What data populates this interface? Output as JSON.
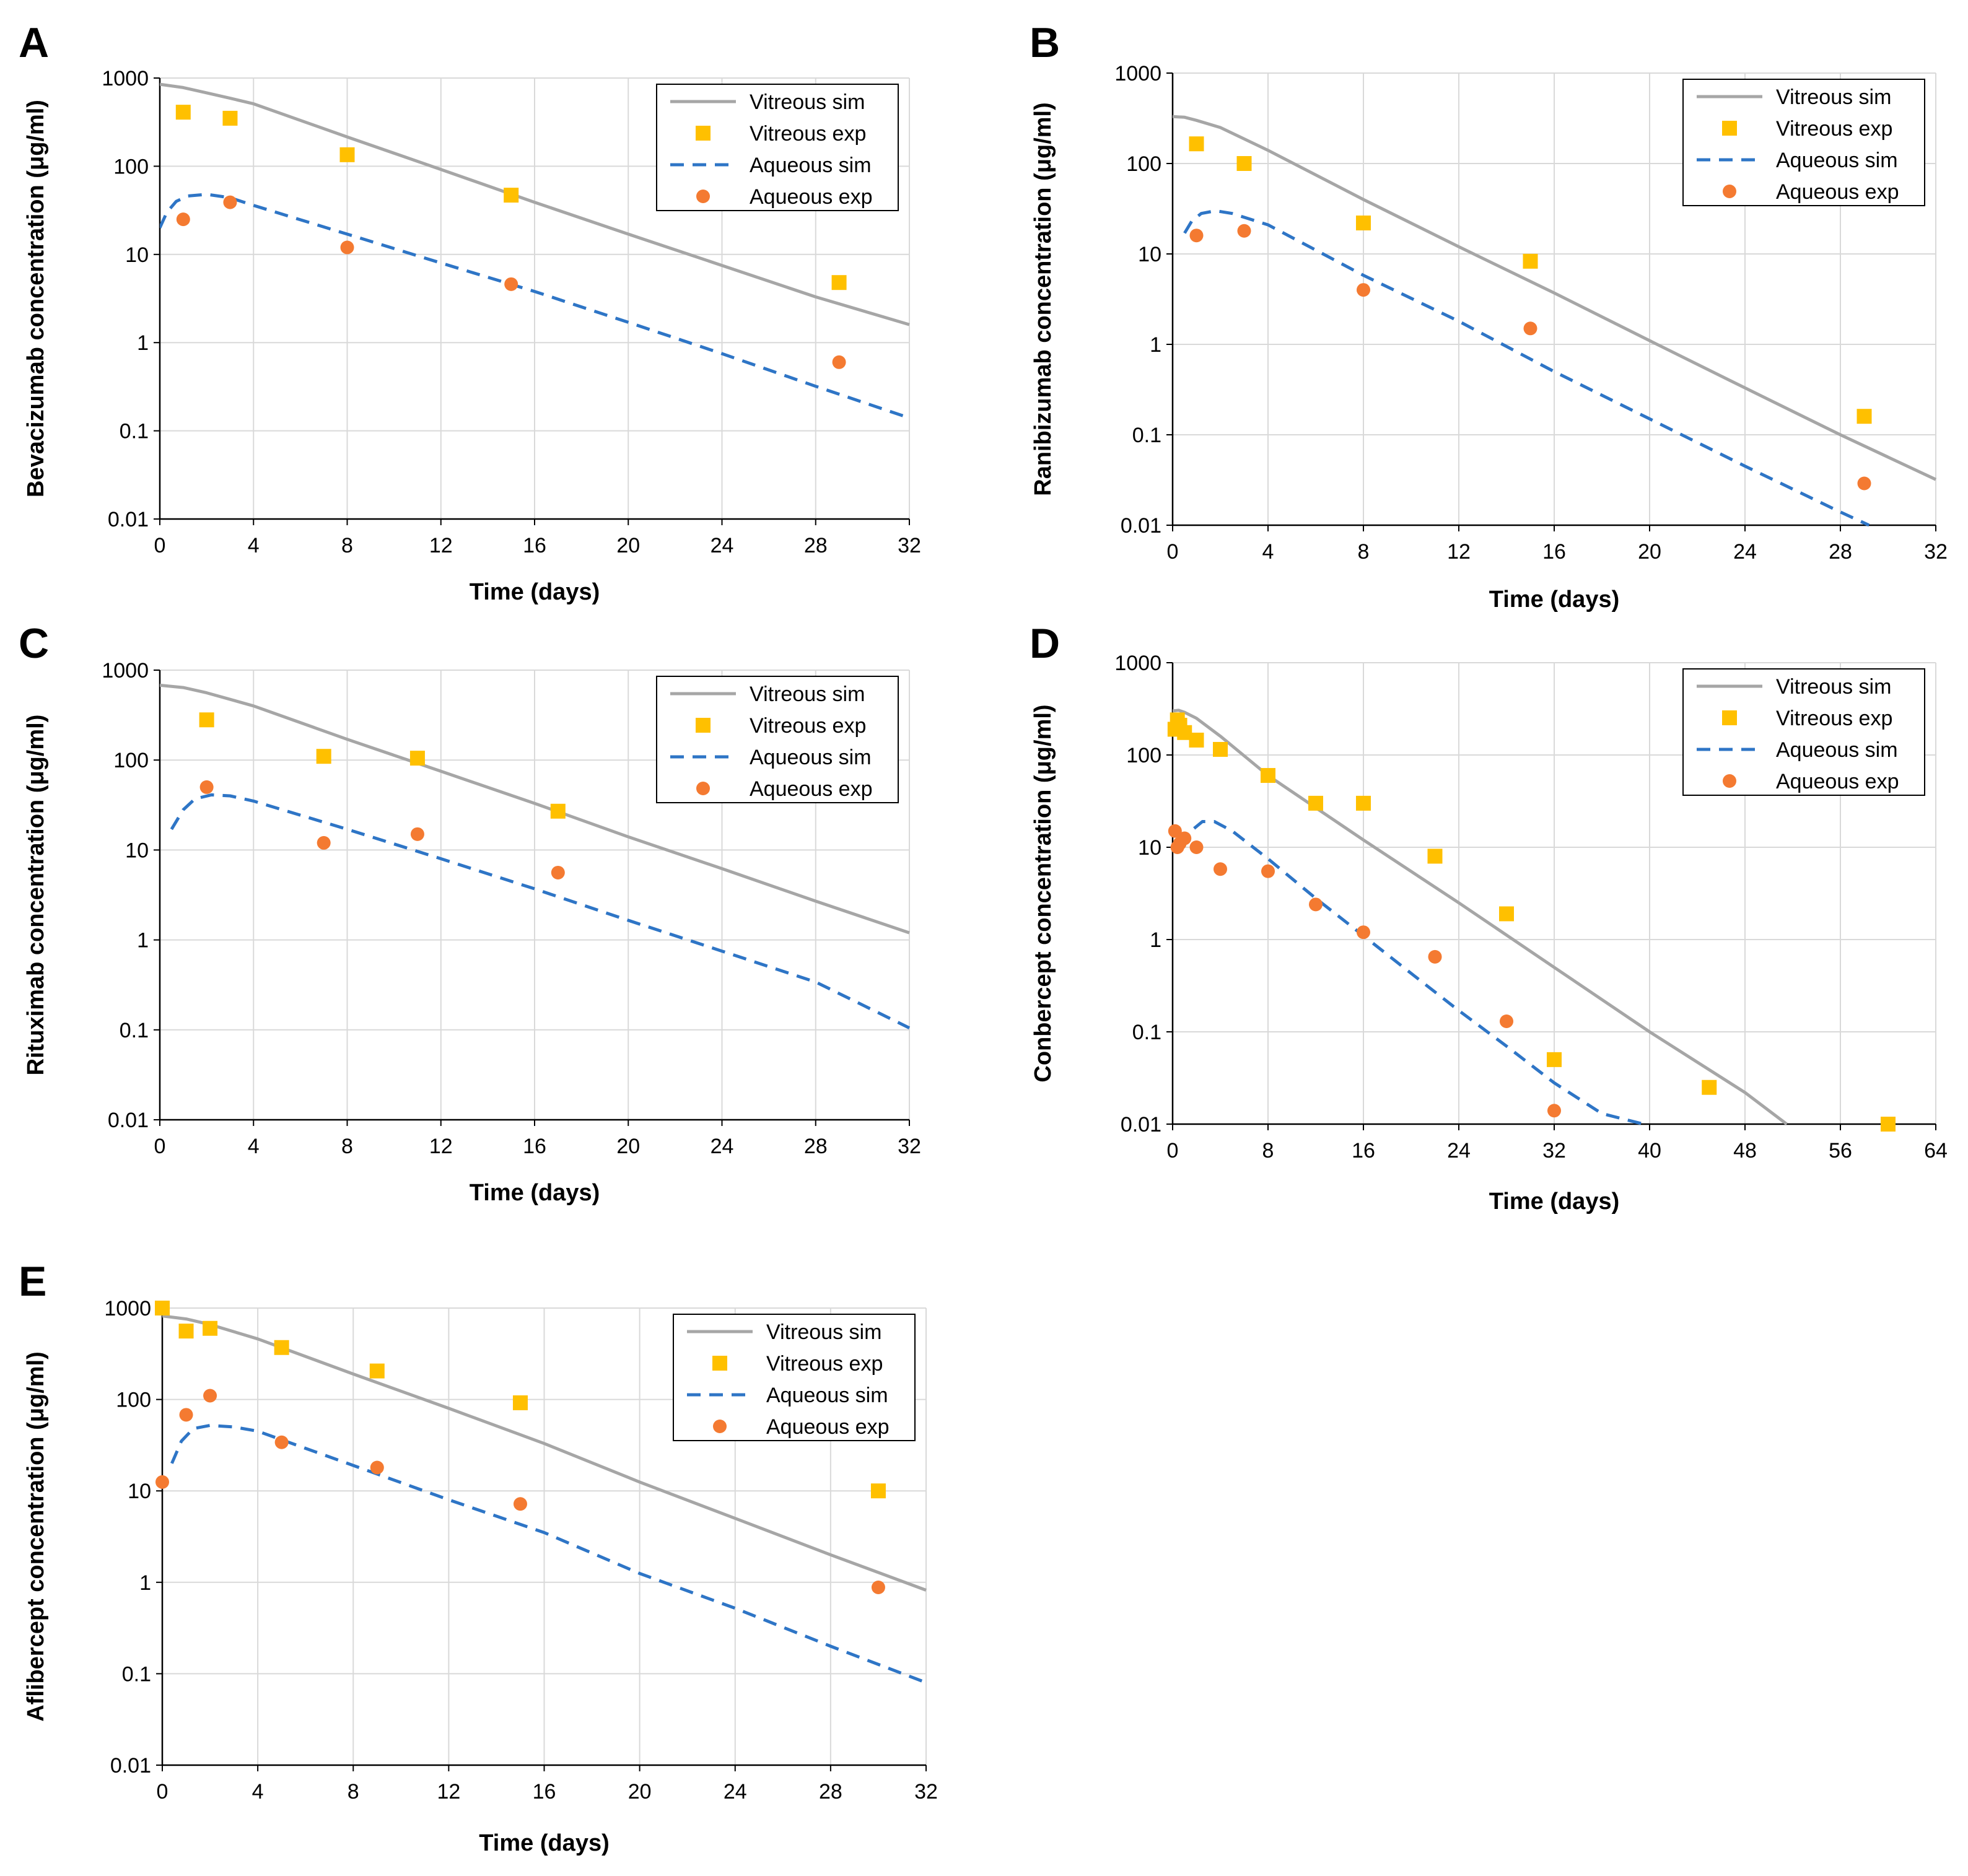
{
  "colors": {
    "vitreous_sim": "#a6a6a6",
    "vitreous_exp": "#ffc000",
    "aqueous_sim": "#2e75c6",
    "aqueous_exp": "#f47a31",
    "grid": "#d9d9d9",
    "axis": "#000000"
  },
  "legend_labels": [
    "Vitreous sim",
    "Vitreous exp",
    "Aqueous sim",
    "Aqueous exp"
  ],
  "chart_data": [
    {
      "panel": "A",
      "type": "line+scatter",
      "ylabel": "Bevacizumab concentration (μg/ml)",
      "xlabel": "Time (days)",
      "xlim": [
        0,
        32
      ],
      "xticks": [
        "0",
        "4",
        "8",
        "12",
        "16",
        "20",
        "24",
        "28",
        "32"
      ],
      "ylim": [
        0.01,
        1000
      ],
      "yscale": "log",
      "yticks": [
        "0.01",
        "0.1",
        "1",
        "10",
        "100",
        "1000"
      ],
      "legend": "top-right",
      "series": [
        {
          "name": "Vitreous sim",
          "kind": "line",
          "x": [
            0,
            1,
            2,
            3,
            4,
            8,
            12,
            16,
            20,
            24,
            28,
            32
          ],
          "y": [
            850,
            780,
            680,
            590,
            510,
            215,
            92,
            39,
            17,
            7.5,
            3.3,
            1.6
          ]
        },
        {
          "name": "Vitreous exp",
          "kind": "square",
          "x": [
            1,
            3,
            8,
            15,
            29
          ],
          "y": [
            410,
            350,
            135,
            47,
            4.8
          ]
        },
        {
          "name": "Aqueous sim",
          "kind": "dashed",
          "x": [
            0,
            0.3,
            0.7,
            1.2,
            2,
            3,
            4,
            8,
            12,
            16,
            20,
            24,
            28,
            32
          ],
          "y": [
            20,
            30,
            40,
            46,
            48,
            44,
            36,
            17,
            8,
            3.8,
            1.7,
            0.75,
            0.32,
            0.14
          ]
        },
        {
          "name": "Aqueous exp",
          "kind": "circle",
          "x": [
            1,
            3,
            8,
            15,
            29
          ],
          "y": [
            25,
            39,
            12,
            4.6,
            0.6
          ]
        }
      ]
    },
    {
      "panel": "B",
      "type": "line+scatter",
      "ylabel": "Ranibizumab concentration (μg/ml)",
      "xlabel": "Time (days)",
      "xlim": [
        0,
        32
      ],
      "xticks": [
        "0",
        "4",
        "8",
        "12",
        "16",
        "20",
        "24",
        "28",
        "32"
      ],
      "ylim": [
        0.01,
        1000
      ],
      "yscale": "log",
      "yticks": [
        "0.01",
        "0.1",
        "1",
        "10",
        "100",
        "1000"
      ],
      "legend": "top-right",
      "series": [
        {
          "name": "Vitreous sim",
          "kind": "line",
          "x": [
            0,
            0.5,
            1,
            2,
            4,
            8,
            12,
            16,
            20,
            24,
            28,
            32
          ],
          "y": [
            330,
            325,
            300,
            250,
            140,
            40,
            12,
            3.7,
            1.1,
            0.33,
            0.1,
            0.032
          ]
        },
        {
          "name": "Vitreous exp",
          "kind": "square",
          "x": [
            1,
            3,
            8,
            15,
            29
          ],
          "y": [
            165,
            100,
            22,
            8.3,
            0.16
          ]
        },
        {
          "name": "Aqueous sim",
          "kind": "dashed",
          "x": [
            0.5,
            0.8,
            1.2,
            1.8,
            2.5,
            4,
            8,
            12,
            16,
            20,
            24,
            28,
            29.2
          ],
          "y": [
            17,
            23,
            28,
            30,
            28,
            21,
            5.8,
            1.8,
            0.5,
            0.15,
            0.045,
            0.014,
            0.01
          ]
        },
        {
          "name": "Aqueous exp",
          "kind": "circle",
          "x": [
            1,
            3,
            8,
            15,
            29
          ],
          "y": [
            16,
            18,
            4,
            1.5,
            0.029
          ]
        }
      ]
    },
    {
      "panel": "C",
      "type": "line+scatter",
      "ylabel": "Rituximab concentration (μg/ml)",
      "xlabel": "Time (days)",
      "xlim": [
        0,
        32
      ],
      "xticks": [
        "0",
        "4",
        "8",
        "12",
        "16",
        "20",
        "24",
        "28",
        "32"
      ],
      "ylim": [
        0.01,
        1000
      ],
      "yscale": "log",
      "yticks": [
        "0.01",
        "0.1",
        "1",
        "10",
        "100",
        "1000"
      ],
      "legend": "top-right",
      "series": [
        {
          "name": "Vitreous sim",
          "kind": "line",
          "x": [
            0,
            1,
            2,
            4,
            8,
            12,
            16,
            20,
            24,
            28,
            32
          ],
          "y": [
            680,
            640,
            560,
            400,
            170,
            75,
            33,
            14,
            6.2,
            2.7,
            1.2
          ]
        },
        {
          "name": "Vitreous exp",
          "kind": "square",
          "x": [
            2,
            7,
            11,
            17
          ],
          "y": [
            280,
            110,
            105,
            27
          ]
        },
        {
          "name": "Aqueous sim",
          "kind": "dashed",
          "x": [
            0.5,
            1,
            1.5,
            2.2,
            3,
            4,
            8,
            12,
            16,
            20,
            24,
            28,
            32
          ],
          "y": [
            17,
            28,
            37,
            41,
            40,
            35,
            17,
            8,
            3.7,
            1.65,
            0.75,
            0.34,
            0.105
          ]
        },
        {
          "name": "Aqueous exp",
          "kind": "circle",
          "x": [
            2,
            7,
            11,
            17
          ],
          "y": [
            50,
            12,
            15,
            5.6
          ]
        }
      ]
    },
    {
      "panel": "D",
      "type": "line+scatter",
      "ylabel": "Conbercept concentration (μg/ml)",
      "xlabel": "Time (days)",
      "xlim": [
        0,
        64
      ],
      "xticks": [
        "0",
        "8",
        "16",
        "24",
        "32",
        "40",
        "48",
        "56",
        "64"
      ],
      "ylim": [
        0.01,
        1000
      ],
      "yscale": "log",
      "yticks": [
        "0.01",
        "0.1",
        "1",
        "10",
        "100",
        "1000"
      ],
      "legend": "top-right",
      "series": [
        {
          "name": "Vitreous sim",
          "kind": "line",
          "x": [
            0,
            0.5,
            1,
            2,
            4,
            8,
            16,
            24,
            32,
            40,
            48,
            51.5
          ],
          "y": [
            300,
            305,
            290,
            250,
            160,
            60,
            12,
            2.5,
            0.5,
            0.1,
            0.022,
            0.01
          ]
        },
        {
          "name": "Vitreous exp",
          "kind": "square",
          "x": [
            0.2,
            0.4,
            0.6,
            1,
            2,
            4,
            8,
            12,
            16,
            22,
            28,
            32,
            45,
            60
          ],
          "y": [
            190,
            240,
            210,
            175,
            145,
            115,
            60,
            30,
            30,
            8,
            1.9,
            0.05,
            0.025,
            0.01
          ]
        },
        {
          "name": "Aqueous sim",
          "kind": "dashed",
          "x": [
            1.8,
            2.5,
            3.5,
            5,
            8,
            12,
            16,
            20,
            24,
            28,
            32,
            36,
            39.5
          ],
          "y": [
            16,
            19,
            19,
            15,
            7.5,
            2.8,
            1.1,
            0.43,
            0.17,
            0.07,
            0.028,
            0.013,
            0.01
          ]
        },
        {
          "name": "Aqueous exp",
          "kind": "circle",
          "x": [
            0.2,
            0.4,
            0.6,
            1,
            2,
            4,
            8,
            12,
            16,
            22,
            28,
            32
          ],
          "y": [
            15,
            10,
            11,
            12.5,
            10,
            5.8,
            5.5,
            2.4,
            1.2,
            0.65,
            0.13,
            0.014
          ]
        }
      ]
    },
    {
      "panel": "E",
      "type": "line+scatter",
      "ylabel": "Aflibercept concentration (μg/ml)",
      "xlabel": "Time (days)",
      "xlim": [
        0,
        32
      ],
      "xticks": [
        "0",
        "4",
        "8",
        "12",
        "16",
        "20",
        "24",
        "28",
        "32"
      ],
      "ylim": [
        0.01,
        1000
      ],
      "yscale": "log",
      "yticks": [
        "0.01",
        "0.1",
        "1",
        "10",
        "100",
        "1000"
      ],
      "legend": "top-right",
      "series": [
        {
          "name": "Vitreous sim",
          "kind": "line",
          "x": [
            0,
            1,
            2,
            4,
            8,
            12,
            16,
            20,
            24,
            28,
            32
          ],
          "y": [
            820,
            760,
            660,
            460,
            190,
            80,
            33,
            12.5,
            5,
            2,
            0.82
          ]
        },
        {
          "name": "Vitreous exp",
          "kind": "square",
          "x": [
            0,
            1,
            2,
            5,
            9,
            15,
            30
          ],
          "y": [
            1000,
            560,
            600,
            370,
            205,
            92,
            10
          ]
        },
        {
          "name": "Aqueous sim",
          "kind": "dashed",
          "x": [
            0.4,
            0.8,
            1.3,
            2,
            3,
            4,
            8,
            12,
            16,
            20,
            24,
            28,
            32
          ],
          "y": [
            20,
            35,
            48,
            52,
            50,
            45,
            19,
            8,
            3.5,
            1.25,
            0.52,
            0.2,
            0.08
          ]
        },
        {
          "name": "Aqueous exp",
          "kind": "circle",
          "x": [
            0,
            1,
            2,
            5,
            9,
            15,
            30
          ],
          "y": [
            12.5,
            68,
            110,
            34,
            18,
            7.2,
            0.88
          ]
        }
      ]
    }
  ]
}
